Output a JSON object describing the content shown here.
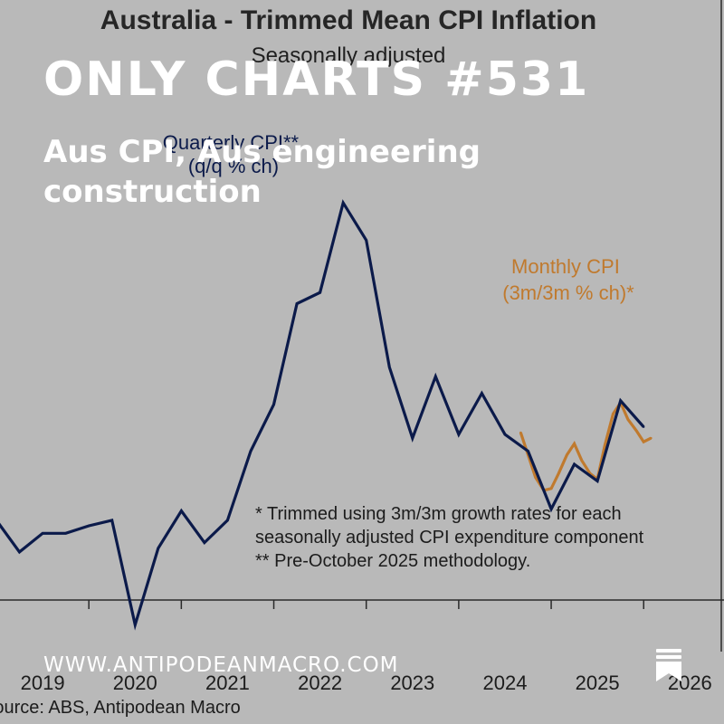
{
  "overlay": {
    "title": "ONLY CHARTS #531",
    "subtitle": "Aus CPI, Aus engineering construction",
    "watermark": "WWW.ANTIPODEANMACRO.COM",
    "icon": "bookmark-icon"
  },
  "chart_data": {
    "type": "line",
    "title": "Australia - Trimmed Mean CPI Inflation",
    "subtitle": "Seasonally adjusted",
    "xlabel": "",
    "ylabel": "",
    "xlim": [
      2019.0,
      2026.35
    ],
    "ylim": [
      0.0,
      2.7
    ],
    "x_tick_labels": [
      "2019",
      "2020",
      "2021",
      "2022",
      "2023",
      "2024",
      "2025",
      "2026"
    ],
    "grid": false,
    "series": [
      {
        "name": "Quarterly CPI** (q/q % ch)",
        "label_lines": [
          "Quarterly CPI**",
          "(q/q % ch)"
        ],
        "color": "#0b1a4a",
        "x": [
          2019.0,
          2019.25,
          2019.5,
          2019.75,
          2020.0,
          2020.25,
          2020.5,
          2020.75,
          2021.0,
          2021.25,
          2021.5,
          2021.75,
          2022.0,
          2022.25,
          2022.5,
          2022.75,
          2023.0,
          2023.25,
          2023.5,
          2023.75,
          2024.0,
          2024.25,
          2024.5,
          2024.75,
          2025.0,
          2025.25,
          2025.5,
          2025.75,
          2026.0
        ],
        "y": [
          0.5,
          0.33,
          0.43,
          0.43,
          0.47,
          0.5,
          -0.06,
          0.35,
          0.55,
          0.38,
          0.5,
          0.87,
          1.12,
          1.66,
          1.72,
          2.2,
          2.0,
          1.32,
          0.94,
          1.27,
          0.96,
          1.18,
          0.96,
          0.87,
          0.56,
          0.8,
          0.71,
          1.14,
          1.0
        ]
      },
      {
        "name": "Monthly CPI (3m/3m % ch)*",
        "label_lines": [
          "Monthly CPI",
          "(3m/3m % ch)*"
        ],
        "color": "#c07a2e",
        "x": [
          2024.67,
          2024.75,
          2024.83,
          2024.92,
          2025.0,
          2025.08,
          2025.17,
          2025.25,
          2025.33,
          2025.42,
          2025.5,
          2025.58,
          2025.67,
          2025.75,
          2025.83,
          2025.92,
          2026.0,
          2026.08
        ],
        "y": [
          0.97,
          0.85,
          0.73,
          0.66,
          0.67,
          0.75,
          0.85,
          0.91,
          0.82,
          0.75,
          0.72,
          0.9,
          1.07,
          1.13,
          1.04,
          0.98,
          0.92,
          0.94
        ]
      }
    ],
    "notes": [
      "* Trimmed using 3m/3m growth rates for each",
      "seasonally adjusted CPI expenditure component",
      "** Pre-October 2025 methodology."
    ],
    "source": "Source: ABS, Antipodean Macro"
  }
}
